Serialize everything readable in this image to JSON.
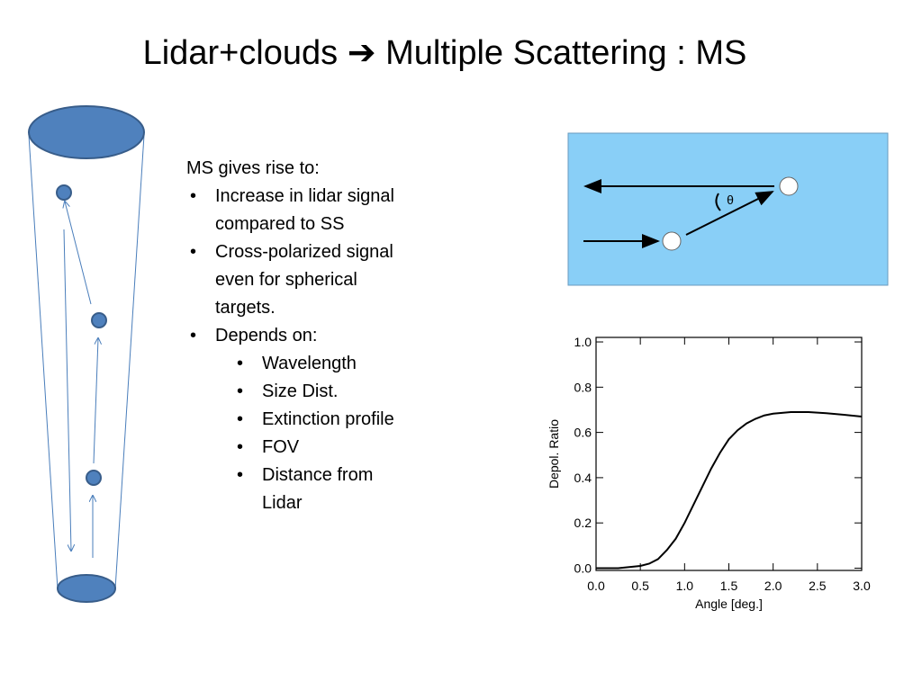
{
  "title": "Lidar+clouds ➔ Multiple Scattering : MS",
  "bullets": {
    "intro": "MS gives rise to:",
    "items": [
      {
        "text": "Increase in lidar signal compared to SS"
      },
      {
        "text": "Cross-polarized signal even for spherical targets."
      },
      {
        "text": "Depends on:",
        "sub": [
          "Wavelength",
          "Size Dist.",
          "Extinction profile",
          "FOV",
          "Distance from Lidar"
        ]
      }
    ]
  },
  "diagram": {
    "angle_label": "θ"
  },
  "chart_data": {
    "type": "line",
    "x_label": "Angle [deg.]",
    "y_label": "Depol. Ratio",
    "color": "#000000",
    "x": [
      0,
      0.25,
      0.5,
      0.6,
      0.7,
      0.8,
      0.9,
      1.0,
      1.1,
      1.2,
      1.3,
      1.4,
      1.5,
      1.6,
      1.7,
      1.8,
      1.9,
      2.0,
      2.2,
      2.4,
      2.6,
      2.8,
      3.0
    ],
    "values": [
      0,
      0,
      0.01,
      0.02,
      0.04,
      0.08,
      0.13,
      0.2,
      0.28,
      0.36,
      0.44,
      0.51,
      0.57,
      0.61,
      0.64,
      0.66,
      0.675,
      0.683,
      0.69,
      0.69,
      0.685,
      0.678,
      0.67
    ],
    "xlim": [
      0,
      3
    ],
    "ylim": [
      -0.01,
      1.02
    ],
    "xticks": [
      {
        "value": 0,
        "label": "0.0"
      },
      {
        "value": 0.5,
        "label": "0.5"
      },
      {
        "value": 1,
        "label": "1.0"
      },
      {
        "value": 1.5,
        "label": "1.5"
      },
      {
        "value": 2,
        "label": "2.0"
      },
      {
        "value": 2.5,
        "label": "2.5"
      },
      {
        "value": 3,
        "label": "3.0"
      }
    ],
    "yticks": [
      {
        "value": 0,
        "label": "0.0"
      },
      {
        "value": 0.2,
        "label": "0.2"
      },
      {
        "value": 0.4,
        "label": "0.4"
      },
      {
        "value": 0.6,
        "label": "0.6"
      },
      {
        "value": 0.8,
        "label": "0.8"
      },
      {
        "value": 1,
        "label": "1.0"
      }
    ]
  }
}
